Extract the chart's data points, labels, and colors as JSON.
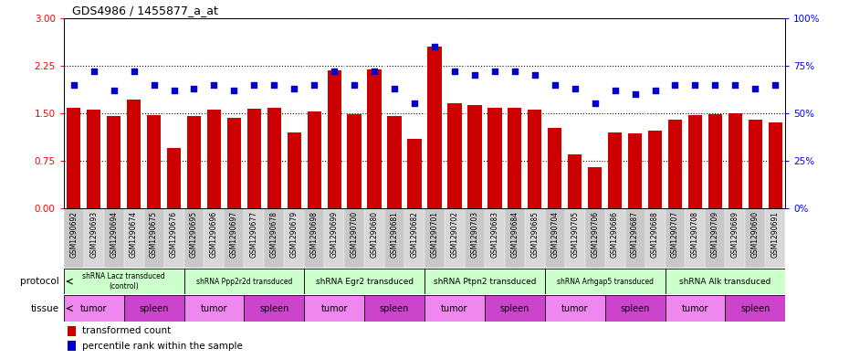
{
  "title": "GDS4986 / 1455877_a_at",
  "samples": [
    "GSM1290692",
    "GSM1290693",
    "GSM1290694",
    "GSM1290674",
    "GSM1290675",
    "GSM1290676",
    "GSM1290695",
    "GSM1290696",
    "GSM1290697",
    "GSM1290677",
    "GSM1290678",
    "GSM1290679",
    "GSM1290698",
    "GSM1290699",
    "GSM1290700",
    "GSM1290680",
    "GSM1290681",
    "GSM1290682",
    "GSM1290701",
    "GSM1290702",
    "GSM1290703",
    "GSM1290683",
    "GSM1290684",
    "GSM1290685",
    "GSM1290704",
    "GSM1290705",
    "GSM1290706",
    "GSM1290686",
    "GSM1290687",
    "GSM1290688",
    "GSM1290707",
    "GSM1290708",
    "GSM1290709",
    "GSM1290689",
    "GSM1290690",
    "GSM1290691"
  ],
  "bar_values": [
    1.58,
    1.55,
    1.45,
    1.72,
    1.47,
    0.95,
    1.45,
    1.55,
    1.42,
    1.57,
    1.58,
    1.2,
    1.52,
    2.18,
    1.48,
    2.19,
    1.46,
    1.1,
    2.55,
    1.65,
    1.63,
    1.58,
    1.58,
    1.55,
    1.27,
    0.85,
    0.65,
    1.2,
    1.18,
    1.22,
    1.4,
    1.47,
    1.48,
    1.5,
    1.4,
    1.35
  ],
  "dot_values": [
    65,
    72,
    62,
    72,
    65,
    62,
    63,
    65,
    62,
    65,
    65,
    63,
    65,
    72,
    65,
    72,
    63,
    55,
    85,
    72,
    70,
    72,
    72,
    70,
    65,
    63,
    55,
    62,
    60,
    62,
    65,
    65,
    65,
    65,
    63,
    65
  ],
  "ylim_left": [
    0,
    3
  ],
  "ylim_right": [
    0,
    100
  ],
  "yticks_left": [
    0,
    0.75,
    1.5,
    2.25,
    3
  ],
  "yticks_right": [
    0,
    25,
    50,
    75,
    100
  ],
  "bar_color": "#cc0000",
  "dot_color": "#0000cc",
  "protocol_groups": [
    {
      "label": "shRNA Lacz transduced\n(control)",
      "start": 0,
      "end": 5
    },
    {
      "label": "shRNA Ppp2r2d transduced",
      "start": 6,
      "end": 11
    },
    {
      "label": "shRNA Egr2 transduced",
      "start": 12,
      "end": 17
    },
    {
      "label": "shRNA Ptpn2 transduced",
      "start": 18,
      "end": 23
    },
    {
      "label": "shRNA Arhgap5 transduced",
      "start": 24,
      "end": 29
    },
    {
      "label": "shRNA Alk transduced",
      "start": 30,
      "end": 35
    }
  ],
  "tissue_groups": [
    {
      "label": "tumor",
      "start": 0,
      "end": 2
    },
    {
      "label": "spleen",
      "start": 3,
      "end": 5
    },
    {
      "label": "tumor",
      "start": 6,
      "end": 8
    },
    {
      "label": "spleen",
      "start": 9,
      "end": 11
    },
    {
      "label": "tumor",
      "start": 12,
      "end": 14
    },
    {
      "label": "spleen",
      "start": 15,
      "end": 17
    },
    {
      "label": "tumor",
      "start": 18,
      "end": 20
    },
    {
      "label": "spleen",
      "start": 21,
      "end": 23
    },
    {
      "label": "tumor",
      "start": 24,
      "end": 26
    },
    {
      "label": "spleen",
      "start": 27,
      "end": 29
    },
    {
      "label": "tumor",
      "start": 30,
      "end": 32
    },
    {
      "label": "spleen",
      "start": 33,
      "end": 35
    }
  ],
  "proto_color": "#ccffcc",
  "tumor_color": "#ee88ee",
  "spleen_color": "#cc44cc",
  "legend_items": [
    {
      "label": "transformed count",
      "color": "#cc0000"
    },
    {
      "label": "percentile rank within the sample",
      "color": "#0000cc"
    }
  ],
  "xlabel_bg_odd": "#c8c8c8",
  "xlabel_bg_even": "#d8d8d8"
}
